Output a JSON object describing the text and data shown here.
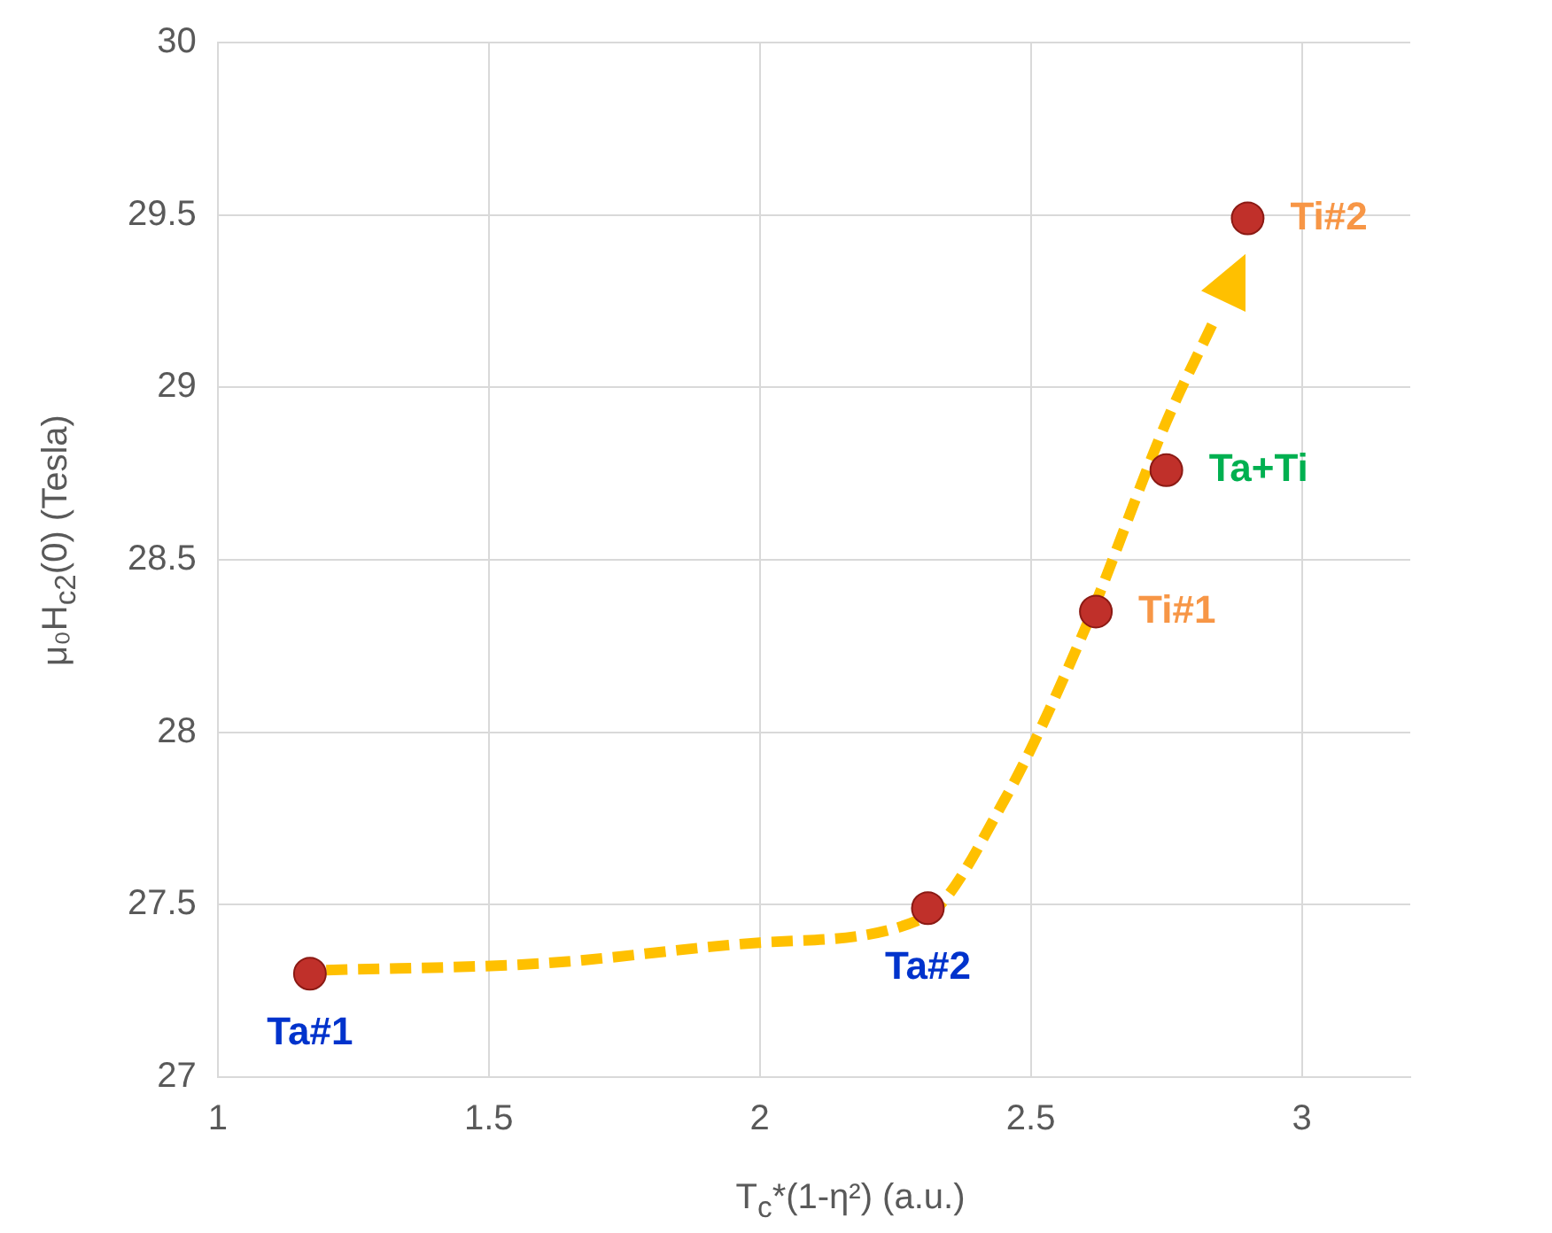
{
  "chart_data": {
    "type": "scatter",
    "xlabel": "T$_{c}$*(1-η²) (a.u.)",
    "ylabel": "μ₀H$_{c2}$(0) (Tesla)",
    "xlim": [
      1,
      3.2
    ],
    "xticks": [
      1,
      1.5,
      2,
      2.5,
      3
    ],
    "ylim": [
      27,
      30
    ],
    "yticks": [
      27,
      27.5,
      28,
      28.5,
      29,
      29.5,
      30
    ],
    "grid": true,
    "marker": "circle",
    "series": [
      {
        "type": "line",
        "color": "#ffc000",
        "line_style": "dashed",
        "marker": "none",
        "x": [
          1.2,
          1.6,
          2.0,
          2.3,
          2.45,
          2.6,
          2.75,
          2.84
        ],
        "values": [
          27.31,
          27.33,
          27.39,
          27.46,
          27.8,
          28.3,
          28.9,
          29.2
        ]
      },
      {
        "type": "scatter",
        "color": "#c0302a",
        "x": [
          1.17,
          2.31,
          2.62,
          2.75,
          2.9
        ],
        "values": [
          27.3,
          27.49,
          28.35,
          28.76,
          29.49
        ]
      }
    ],
    "annotations": [
      {
        "text": "Ta#1",
        "x": 1.17,
        "y": 27.3
      },
      {
        "text": "Ta#2",
        "x": 2.31,
        "y": 27.49
      },
      {
        "text": "Ti#1",
        "x": 2.62,
        "y": 28.35
      },
      {
        "text": "Ta+Ti",
        "x": 2.75,
        "y": 28.76
      },
      {
        "text": "Ti#2",
        "x": 2.9,
        "y": 29.49
      }
    ]
  }
}
